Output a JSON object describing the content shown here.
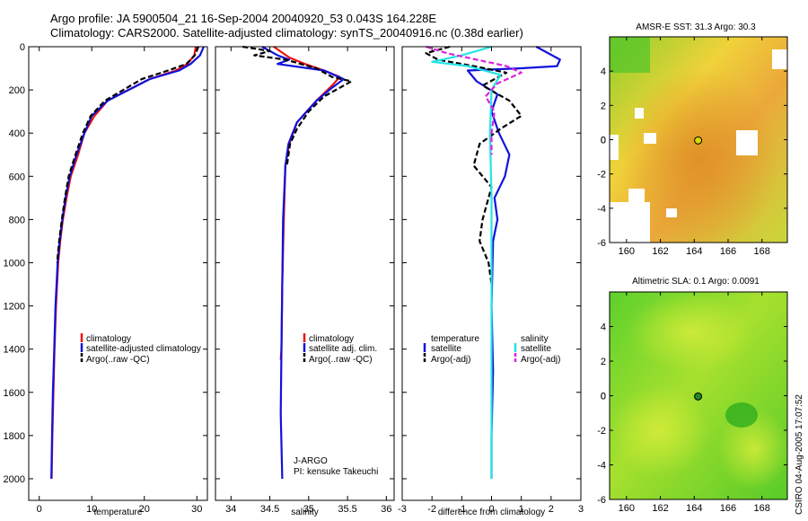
{
  "header": {
    "line1": "Argo profile: JA 5900504_21 16-Sep-2004 20040920_53 0.043S 164.228E",
    "line2": "Climatology: CARS2000. Satellite-adjusted climatology: synTS_20040916.nc (0.38d earlier)"
  },
  "credit": "CSIRO 04-Aug-2005 17:07:52",
  "colors": {
    "climatology": "#ee1111",
    "satellite": "#1111dd",
    "argo": "#000000",
    "sal_sat": "#22e5e5",
    "sal_argo": "#dd22dd",
    "marker_top": "#d8d800",
    "marker_bottom": "#228822"
  },
  "depth_axis": {
    "min": 0,
    "max": 2100,
    "ticks": [
      0,
      200,
      400,
      600,
      800,
      1000,
      1200,
      1400,
      1600,
      1800,
      2000
    ]
  },
  "chart_data": [
    {
      "type": "line",
      "name": "temperature-panel",
      "xlabel": "temperature",
      "xlim": [
        -2,
        32
      ],
      "xticks": [
        0,
        10,
        20,
        30
      ],
      "ylim": [
        0,
        2100
      ],
      "legend": [
        "climatology",
        "satellite-adjusted climatology",
        "Argo(..raw -QC)"
      ],
      "series": [
        {
          "name": "climatology",
          "color": "#ee1111",
          "dash": "",
          "x": [
            29.8,
            29.5,
            28.2,
            26.0,
            21.0,
            13.0,
            10.5,
            8.6,
            7.4,
            6.0,
            5.2,
            4.5,
            4.0,
            3.6,
            3.2,
            2.9,
            2.7,
            2.5,
            2.35
          ],
          "y": [
            0,
            40,
            80,
            110,
            150,
            250,
            320,
            400,
            500,
            600,
            700,
            800,
            900,
            1000,
            1200,
            1400,
            1600,
            1800,
            2000
          ]
        },
        {
          "name": "satellite-adjusted climatology",
          "color": "#1111dd",
          "dash": "",
          "x": [
            31.3,
            30.6,
            28.8,
            26.6,
            21.0,
            13.0,
            10.0,
            8.6,
            7.1,
            5.8,
            5.0,
            4.4,
            3.9,
            3.5,
            3.1,
            2.85,
            2.6,
            2.45,
            2.3
          ],
          "y": [
            0,
            40,
            80,
            110,
            150,
            250,
            320,
            400,
            500,
            600,
            700,
            800,
            900,
            1000,
            1200,
            1400,
            1600,
            1800,
            2000
          ]
        },
        {
          "name": "Argo(..raw -QC)",
          "color": "#000000",
          "dash": "6,3",
          "x": [
            30.3,
            29.6,
            28.0,
            24.5,
            19.5,
            12.5,
            9.8,
            8.3,
            6.9,
            5.6,
            4.9,
            4.3,
            3.8,
            3.4
          ],
          "y": [
            0,
            40,
            80,
            110,
            150,
            250,
            320,
            400,
            500,
            600,
            700,
            800,
            900,
            1000
          ]
        }
      ]
    },
    {
      "type": "line",
      "name": "salinity-panel",
      "xlabel": "salinity",
      "xlim": [
        33.8,
        36.1
      ],
      "xticks": [
        34,
        34.5,
        35,
        35.5,
        36
      ],
      "ylim": [
        0,
        2100
      ],
      "legend": [
        "climatology",
        "satellite adj. clim.",
        "Argo(..raw -QC)"
      ],
      "series": [
        {
          "name": "climatology",
          "color": "#ee1111",
          "dash": "",
          "x": [
            34.55,
            34.75,
            34.95,
            35.2,
            35.4,
            35.3,
            35.1,
            34.85,
            34.75,
            34.7,
            34.68,
            34.66,
            34.65,
            34.64
          ],
          "y": [
            0,
            50,
            80,
            110,
            140,
            180,
            250,
            350,
            450,
            550,
            800,
            1100,
            1400,
            1450
          ]
        },
        {
          "name": "satellite adj. clim.",
          "color": "#1111dd",
          "dash": "",
          "x": [
            34.4,
            34.6,
            34.75,
            34.6,
            35.2,
            35.45,
            35.3,
            35.1,
            34.85,
            34.74,
            34.7,
            34.67,
            34.66,
            34.65,
            34.64,
            34.66
          ],
          "y": [
            0,
            40,
            60,
            80,
            110,
            150,
            190,
            250,
            350,
            450,
            550,
            800,
            1100,
            1400,
            1700,
            2000
          ]
        },
        {
          "name": "Argo(..raw -QC)",
          "color": "#000000",
          "dash": "6,3",
          "x": [
            34.15,
            34.5,
            34.3,
            34.7,
            35.1,
            35.3,
            35.55,
            35.2,
            35.0,
            34.85,
            34.76,
            34.72
          ],
          "y": [
            0,
            20,
            40,
            60,
            100,
            140,
            160,
            230,
            300,
            380,
            450,
            550
          ]
        }
      ],
      "annotations": [
        "J-ARGO",
        "PI: kensuke Takeuchi"
      ]
    },
    {
      "type": "line",
      "name": "difference-panel",
      "xlabel": "difference from climatology",
      "xlim": [
        -3,
        3
      ],
      "xticks": [
        -3,
        -2,
        -1,
        0,
        1,
        2,
        3
      ],
      "ylim": [
        0,
        2100
      ],
      "legend_left": [
        "temperature",
        "satellite",
        "Argo(-adj)"
      ],
      "legend_right": [
        "salinity",
        "satellite",
        "Argo(-adj)"
      ],
      "series": [
        {
          "name": "temperature satellite",
          "color": "#1111dd",
          "dash": "",
          "x": [
            1.5,
            2.3,
            2.2,
            1.0,
            -0.8,
            -0.5,
            0.2,
            0.0,
            0.25,
            0.6,
            0.45,
            0.1,
            0.2,
            0.05,
            0.0,
            0.05,
            0.0,
            0.0
          ],
          "y": [
            0,
            60,
            90,
            100,
            110,
            160,
            220,
            300,
            400,
            500,
            600,
            700,
            800,
            900,
            1200,
            1500,
            1800,
            2000
          ]
        },
        {
          "name": "temperature Argo(-adj)",
          "color": "#000000",
          "dash": "6,3",
          "x": [
            -1.4,
            -2.2,
            -1.8,
            -0.6,
            0.5,
            -0.3,
            0.6,
            1.0,
            0.3,
            -0.4,
            -0.6,
            0.0,
            -0.3,
            -0.4,
            -0.1,
            0.0
          ],
          "y": [
            0,
            30,
            60,
            90,
            120,
            180,
            250,
            320,
            380,
            450,
            550,
            650,
            800,
            900,
            1000,
            1100
          ]
        },
        {
          "name": "salinity satellite",
          "color": "#22e5e5",
          "dash": "",
          "x": [
            0.0,
            -1.0,
            -2.0,
            -0.8,
            0.3,
            0.0,
            -0.05,
            0.0,
            0.0,
            0.0,
            0.0
          ],
          "y": [
            0,
            40,
            70,
            90,
            130,
            200,
            400,
            700,
            1000,
            1500,
            2000
          ]
        },
        {
          "name": "salinity Argo(-adj)",
          "color": "#dd22dd",
          "dash": "6,3",
          "x": [
            -2.2,
            -1.5,
            -0.5,
            0.5,
            1.0,
            0.2,
            -0.2,
            0.1,
            0.0,
            0.0
          ],
          "y": [
            0,
            30,
            60,
            90,
            120,
            170,
            230,
            300,
            400,
            500
          ]
        }
      ]
    },
    {
      "type": "heatmap",
      "name": "sst-map",
      "title": "AMSR-E SST: 31.3 Argo: 30.3",
      "xticks": [
        160,
        162,
        164,
        166,
        168
      ],
      "yticks": [
        4,
        2,
        0,
        -2,
        -4,
        -6
      ],
      "xlim": [
        159,
        169.5
      ],
      "ylim": [
        -6,
        6
      ],
      "marker": {
        "lon": 164.228,
        "lat": -0.043
      }
    },
    {
      "type": "heatmap",
      "name": "sla-map",
      "title": "Altimetric SLA: 0.1 Argo: 0.0091",
      "xticks": [
        160,
        162,
        164,
        166,
        168
      ],
      "yticks": [
        4,
        2,
        0,
        -2,
        -4,
        -6
      ],
      "xlim": [
        159,
        169.5
      ],
      "ylim": [
        -6,
        6
      ],
      "marker": {
        "lon": 164.228,
        "lat": -0.043
      }
    }
  ]
}
